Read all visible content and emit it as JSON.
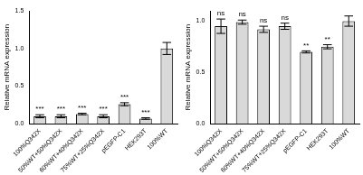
{
  "chart_data": [
    {
      "type": "bar",
      "y_label": "Relative mRNA expression",
      "categories": [
        "100%Q342X",
        "50%WT+50%Q342X",
        "60%WT+40%Q342X",
        "75%WT+25%Q342X",
        "pEGFP-C1",
        "HEK293T",
        "100%WT"
      ],
      "values": [
        0.1,
        0.1,
        0.13,
        0.1,
        0.26,
        0.07,
        1.0
      ],
      "errors": [
        0.02,
        0.02,
        0.01,
        0.02,
        0.02,
        0.01,
        0.08
      ],
      "annotations": [
        "***",
        "***",
        "***",
        "***",
        "***",
        "***",
        null
      ],
      "color": "#d9d9d9",
      "ylim": [
        0,
        1.5
      ],
      "yticks": [
        {
          "value": 0,
          "label": "0.0"
        },
        {
          "value": 0.5,
          "label": "0.5"
        },
        {
          "value": 1,
          "label": "1.0"
        },
        {
          "value": 1.5,
          "label": "1.5"
        }
      ],
      "grid": false
    },
    {
      "type": "bar",
      "y_label": "Relative mRNA expression",
      "categories": [
        "100%Q342X",
        "50%WT+50%Q342X",
        "60%WT+40%Q342X",
        "75%WT+25%Q342X",
        "pEGFP-C1",
        "HEK293T",
        "100%WT"
      ],
      "values": [
        0.95,
        0.99,
        0.92,
        0.95,
        0.7,
        0.75,
        1.0
      ],
      "errors": [
        0.07,
        0.02,
        0.03,
        0.03,
        0.01,
        0.02,
        0.05
      ],
      "annotations": [
        "ns",
        "ns",
        "ns",
        "ns",
        "**",
        "**",
        null
      ],
      "color": "#d9d9d9",
      "ylim": [
        0,
        1.1
      ],
      "yticks": [
        {
          "value": 0,
          "label": "0.0"
        },
        {
          "value": 0.5,
          "label": "0.5"
        },
        {
          "value": 1,
          "label": "1.0"
        }
      ],
      "grid": false
    }
  ]
}
